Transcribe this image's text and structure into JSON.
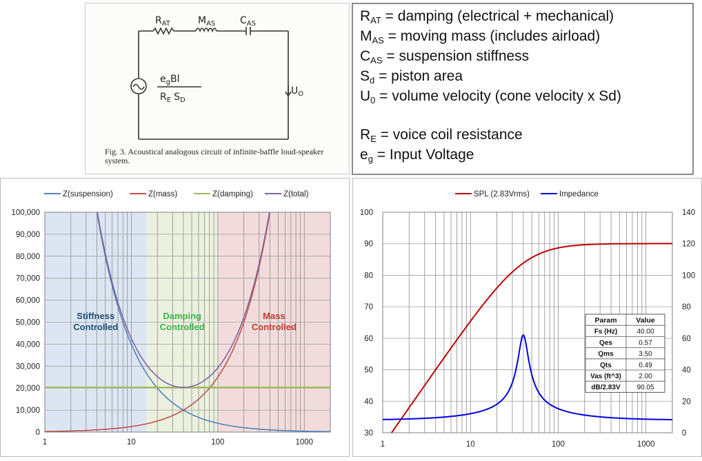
{
  "circuit": {
    "labels": {
      "rat_main": "R",
      "rat_sub": "AT",
      "mas_main": "M",
      "mas_sub": "AS",
      "cas_main": "C",
      "cas_sub": "AS",
      "src_top": "e",
      "src_top_sub": "g",
      "src_top_tail": "Bl",
      "src_bot": "R",
      "src_bot_sub": "E",
      "src_bot_tail": "S",
      "src_bot_tail_sub": "D",
      "u0_main": "U",
      "u0_sub": "O"
    },
    "caption": "Fig. 3. Acoustical analogous circuit of infinite-baffle loud-speaker system."
  },
  "definitions": {
    "l1": {
      "sym": "R",
      "sub": "AT",
      "text": " = damping (electrical + mechanical)"
    },
    "l2": {
      "sym": "M",
      "sub": "AS",
      "text": " = moving mass (includes airload)"
    },
    "l3": {
      "sym": "C",
      "sub": "AS",
      "text": " = suspension stiffness"
    },
    "l4": {
      "sym": "S",
      "sub": "d",
      "text": " = piston area"
    },
    "l5": {
      "sym": "U",
      "sub": "0",
      "text": " = volume velocity (cone velocity x Sd)"
    },
    "l6": {
      "sym": "R",
      "sub": "E",
      "text": " = voice coil resistance"
    },
    "l7": {
      "sym": "e",
      "sub": "g",
      "text": " = Input Voltage"
    }
  },
  "chart_data": [
    {
      "type": "line",
      "title": "",
      "xscale": "log",
      "xlim": [
        1,
        2000
      ],
      "ylim": [
        0,
        100000
      ],
      "x_ticks": [
        "1",
        "10",
        "100",
        "1000"
      ],
      "y_ticks": [
        "0",
        "10,000",
        "20,000",
        "30,000",
        "40,000",
        "50,000",
        "60,000",
        "70,000",
        "80,000",
        "90,000",
        "100,000"
      ],
      "legend_position": "top",
      "grid": true,
      "series": [
        {
          "name": "Z(suspension)",
          "color": "#4f81bd",
          "model": "k/f",
          "k": 400000
        },
        {
          "name": "Z(mass)",
          "color": "#c0504d",
          "model": "m*f",
          "m": 250
        },
        {
          "name": "Z(damping)",
          "color": "#9bbb59",
          "model": "constant",
          "value": 20300
        },
        {
          "name": "Z(total)",
          "color": "#8064a2",
          "model": "sqrt(damping^2+(mass-suspension)^2)"
        }
      ],
      "regions": [
        {
          "label_line1": "Stiffness",
          "label_line2": "Controlled",
          "from": 1,
          "to": 15,
          "color": "#dce6f2",
          "text_color": "#1f4e79"
        },
        {
          "label_line1": "Damping",
          "label_line2": "Controlled",
          "from": 15,
          "to": 100,
          "color": "#ebf1de",
          "text_color": "#3cb34a"
        },
        {
          "label_line1": "Mass",
          "label_line2": "Controlled",
          "from": 100,
          "to": 2000,
          "color": "#f2dcdb",
          "text_color": "#c0392b"
        }
      ]
    },
    {
      "type": "line",
      "title": "",
      "xscale": "log",
      "xlim": [
        1,
        2000
      ],
      "ylim_left": [
        30,
        100
      ],
      "ylim_right": [
        0,
        140
      ],
      "x_ticks": [
        "1",
        "10",
        "100",
        "1000"
      ],
      "y_ticks_left": [
        "30",
        "40",
        "50",
        "60",
        "70",
        "80",
        "90",
        "100"
      ],
      "y_ticks_right": [
        "0",
        "20",
        "40",
        "60",
        "80",
        "100",
        "120",
        "140"
      ],
      "legend_position": "top",
      "grid": true,
      "series": [
        {
          "name": "SPL (2.83Vrms)",
          "color": "#c00000",
          "axis": "left",
          "model": "2nd-order highpass",
          "fs": 40,
          "qts": 0.49,
          "ref_db": 90.05
        },
        {
          "name": "Impedance",
          "color": "#0000e0",
          "axis": "right",
          "model": "Re + driver resonance",
          "fs": 40,
          "qms": 3.5,
          "re": 8,
          "peak": 62
        }
      ],
      "param_table": {
        "headers": [
          "Param",
          "Value"
        ],
        "rows": [
          [
            "Fs (Hz)",
            "40.00"
          ],
          [
            "Qes",
            "0.57"
          ],
          [
            "Qms",
            "3.50"
          ],
          [
            "Qts",
            "0.49"
          ],
          [
            "Vas (ft^3)",
            "2.00"
          ],
          [
            "dB/2.83V",
            "90.05"
          ]
        ]
      }
    }
  ]
}
